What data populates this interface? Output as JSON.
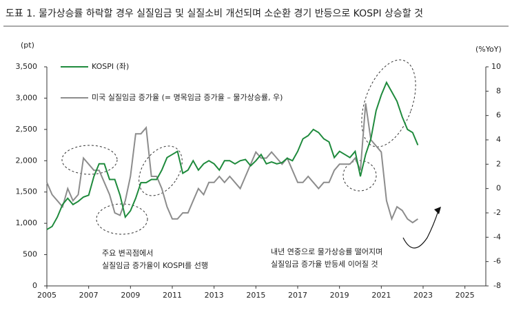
{
  "chart_data": {
    "type": "line",
    "title": "도표 1. 물가상승률 하락할 경우 실질임금 및 실질소비 개선되며 소순환 경기 반등으로 KOSPI 상승할 것",
    "y_label": "(pt)",
    "y2_label": "(%YoY)",
    "annotations": [
      "주요 변곡점에서",
      "실질임금 증가율이 KOSPI를 선행",
      "내년 연중으로 물가상승률 떨어지며",
      "실질임금 증가율 반등세 이어질 것"
    ],
    "x": [
      2005.0,
      2005.25,
      2005.5,
      2005.75,
      2006.0,
      2006.25,
      2006.5,
      2006.75,
      2007.0,
      2007.25,
      2007.5,
      2007.75,
      2008.0,
      2008.25,
      2008.5,
      2008.75,
      2009.0,
      2009.25,
      2009.5,
      2009.75,
      2010.0,
      2010.25,
      2010.5,
      2010.75,
      2011.0,
      2011.25,
      2011.5,
      2011.75,
      2012.0,
      2012.25,
      2012.5,
      2012.75,
      2013.0,
      2013.25,
      2013.5,
      2013.75,
      2014.0,
      2014.25,
      2014.5,
      2014.75,
      2015.0,
      2015.25,
      2015.5,
      2015.75,
      2016.0,
      2016.25,
      2016.5,
      2016.75,
      2017.0,
      2017.25,
      2017.5,
      2017.75,
      2018.0,
      2018.25,
      2018.5,
      2018.75,
      2019.0,
      2019.25,
      2019.5,
      2019.75,
      2020.0,
      2020.25,
      2020.5,
      2020.75,
      2021.0,
      2021.25,
      2021.5,
      2021.75,
      2022.0,
      2022.25,
      2022.5,
      2022.75
    ],
    "series": [
      {
        "name": "KOSPI (좌)",
        "color": "#1e8a3c",
        "axis": "y",
        "values": [
          900,
          950,
          1100,
          1300,
          1400,
          1300,
          1350,
          1420,
          1450,
          1750,
          1950,
          1950,
          1700,
          1700,
          1450,
          1100,
          1200,
          1400,
          1650,
          1650,
          1700,
          1700,
          1850,
          2050,
          2100,
          2150,
          1800,
          1850,
          2000,
          1850,
          1950,
          2000,
          1950,
          1850,
          2000,
          2000,
          1950,
          2000,
          2020,
          1920,
          2000,
          2100,
          1950,
          1980,
          1950,
          1970,
          2040,
          2000,
          2150,
          2350,
          2400,
          2500,
          2450,
          2350,
          2300,
          2050,
          2150,
          2100,
          2050,
          2150,
          1750,
          2100,
          2350,
          2800,
          3050,
          3250,
          3100,
          2950,
          2700,
          2500,
          2450,
          2250
        ]
      },
      {
        "name": "미국 실질임금 증가율 (= 명목임금 증가율 – 물가상승률, 우)",
        "color": "#8c8c8c",
        "axis": "y2",
        "values": [
          0.5,
          -0.5,
          -1.0,
          -1.5,
          0,
          -1,
          -0.5,
          2.5,
          2,
          1.5,
          1.5,
          0.5,
          -0.5,
          -2.0,
          -2.2,
          -1,
          1,
          4.5,
          4.5,
          5,
          1,
          1,
          0,
          -1.5,
          -2.5,
          -2.5,
          -2,
          -2,
          -1,
          0,
          -0.5,
          0.5,
          0.5,
          1,
          0.5,
          1,
          0.5,
          0,
          1,
          2,
          3,
          2.5,
          2.5,
          3,
          2.5,
          2,
          2.5,
          1.5,
          0.5,
          0.5,
          1,
          0.5,
          0,
          0.5,
          0.5,
          1.5,
          2,
          2,
          2,
          2.5,
          1.5,
          7,
          4,
          3.5,
          3,
          -1,
          -2.5,
          -1.5,
          -1.8,
          -2.5,
          -2.8,
          -2.5
        ]
      }
    ],
    "xlim": [
      2005,
      2026
    ],
    "xticks": [
      2005,
      2007,
      2009,
      2011,
      2013,
      2015,
      2017,
      2019,
      2021,
      2023,
      2025
    ],
    "ylim": [
      0,
      3500
    ],
    "yticks": [
      0,
      500,
      {
        "value": 1000,
        "label": "1,000"
      },
      {
        "value": 1500,
        "label": "1,500"
      },
      {
        "value": 2000,
        "label": "2,000"
      },
      {
        "value": 2500,
        "label": "2,500"
      },
      {
        "value": 3000,
        "label": "3,000"
      },
      {
        "value": 3500,
        "label": "3,500"
      }
    ],
    "y2lim": [
      -8,
      10
    ],
    "y2ticks": [
      -8,
      -6,
      -4,
      -2,
      0,
      2,
      4,
      6,
      8,
      10
    ]
  }
}
